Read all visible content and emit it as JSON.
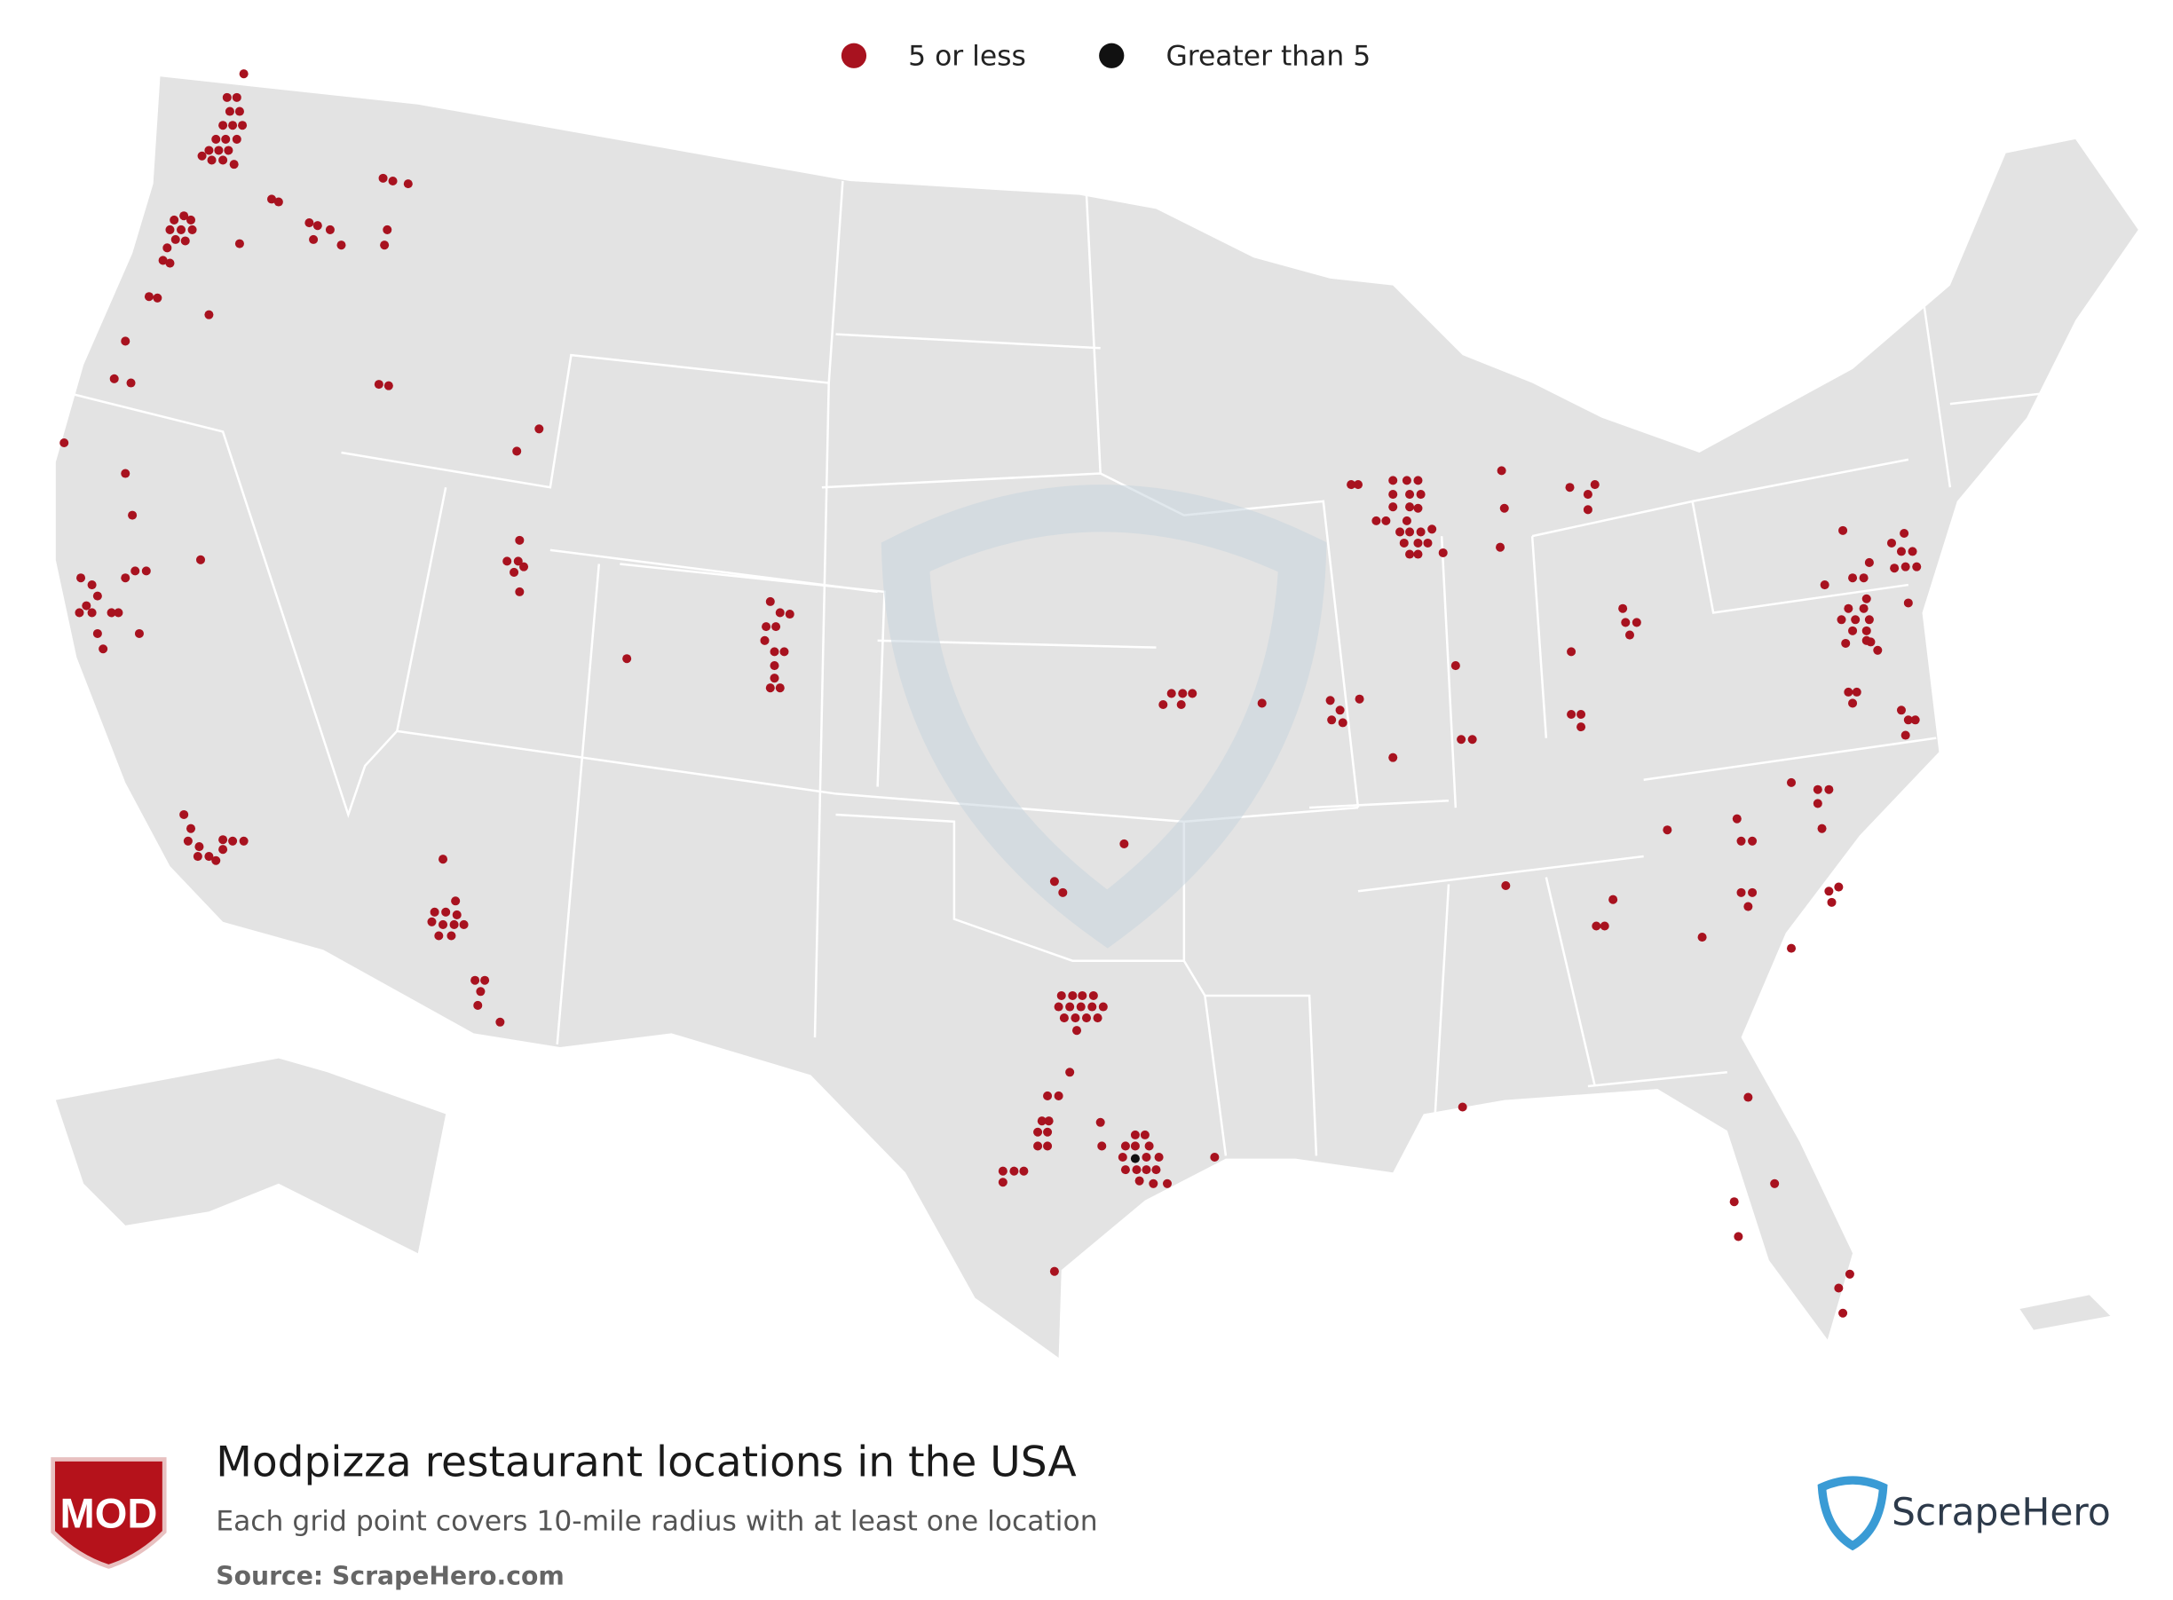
{
  "legend": {
    "items": [
      {
        "label": "5 or less",
        "color": "#a8121f"
      },
      {
        "label": "Greater than 5",
        "color": "#111111"
      }
    ]
  },
  "footer": {
    "logo": "MOD",
    "title": "Modpizza restaurant locations in the USA",
    "subtitle": "Each grid point covers 10-mile radius with at least one location",
    "source": "Source: ScrapeHero.com",
    "brand": "ScrapeHero"
  }
}
